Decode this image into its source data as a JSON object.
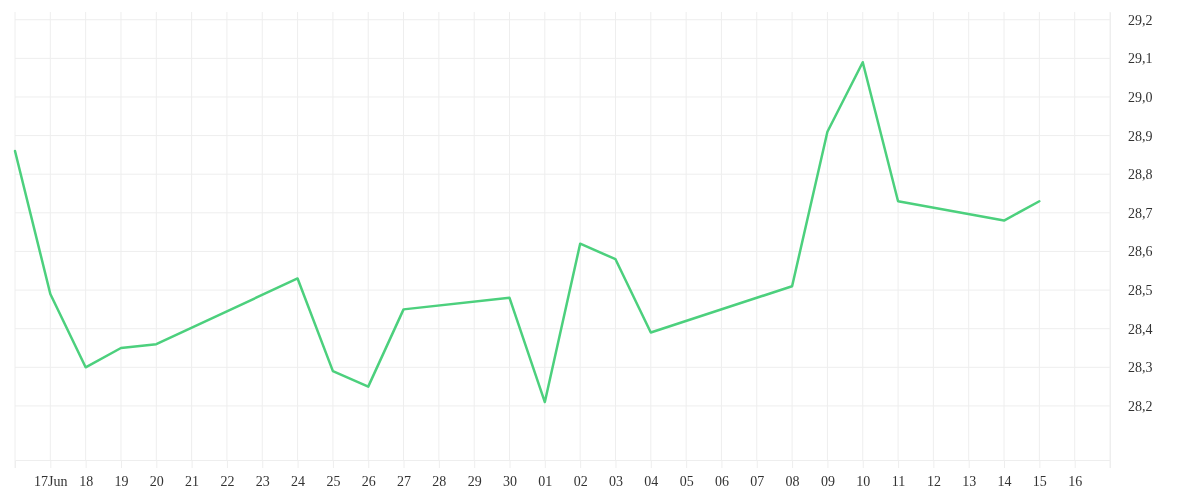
{
  "chart_data": {
    "type": "line",
    "x": [
      "--06-16",
      "--06-17",
      "--06-18",
      "--06-19",
      "--06-20",
      "--06-24",
      "--06-25",
      "--06-26",
      "--06-27",
      "--06-30",
      "--07-01",
      "--07-02",
      "--07-03",
      "--07-04",
      "--07-08",
      "--07-09",
      "--07-10",
      "--07-11",
      "--07-14",
      "--07-15"
    ],
    "series": [
      {
        "color": "#4cd07d",
        "values": [
          28.86,
          28.49,
          28.3,
          28.35,
          28.36,
          28.53,
          28.29,
          28.25,
          28.45,
          28.48,
          28.21,
          28.62,
          28.58,
          28.39,
          28.51,
          28.91,
          29.09,
          28.73,
          28.68,
          28.73
        ]
      }
    ],
    "xlim": [
      "--06-16",
      "--07-17"
    ],
    "xticks": [
      {
        "value": "--06-17",
        "label": "17Jun"
      },
      {
        "value": "--06-18",
        "label": "18"
      },
      {
        "value": "--06-19",
        "label": "19"
      },
      {
        "value": "--06-20",
        "label": "20"
      },
      {
        "value": "--06-21",
        "label": "21"
      },
      {
        "value": "--06-22",
        "label": "22"
      },
      {
        "value": "--06-23",
        "label": "23"
      },
      {
        "value": "--06-24",
        "label": "24"
      },
      {
        "value": "--06-25",
        "label": "25"
      },
      {
        "value": "--06-26",
        "label": "26"
      },
      {
        "value": "--06-27",
        "label": "27"
      },
      {
        "value": "--06-28",
        "label": "28"
      },
      {
        "value": "--06-29",
        "label": "29"
      },
      {
        "value": "--06-30",
        "label": "30"
      },
      {
        "value": "--07-01",
        "label": "01"
      },
      {
        "value": "--07-02",
        "label": "02"
      },
      {
        "value": "--07-03",
        "label": "03"
      },
      {
        "value": "--07-04",
        "label": "04"
      },
      {
        "value": "--07-05",
        "label": "05"
      },
      {
        "value": "--07-06",
        "label": "06"
      },
      {
        "value": "--07-07",
        "label": "07"
      },
      {
        "value": "--07-08",
        "label": "08"
      },
      {
        "value": "--07-09",
        "label": "09"
      },
      {
        "value": "--07-10",
        "label": "10"
      },
      {
        "value": "--07-11",
        "label": "11"
      },
      {
        "value": "--07-12",
        "label": "12"
      },
      {
        "value": "--07-13",
        "label": "13"
      },
      {
        "value": "--07-14",
        "label": "14"
      },
      {
        "value": "--07-15",
        "label": "15"
      },
      {
        "value": "--07-16",
        "label": "16"
      }
    ],
    "ylim": [
      28.06,
      29.22
    ],
    "yticks": [
      {
        "value": 28.2,
        "label": "28,2"
      },
      {
        "value": 28.3,
        "label": "28,3"
      },
      {
        "value": 28.4,
        "label": "28,4"
      },
      {
        "value": 28.5,
        "label": "28,5"
      },
      {
        "value": 28.6,
        "label": "28,6"
      },
      {
        "value": 28.7,
        "label": "28,7"
      },
      {
        "value": 28.8,
        "label": "28,8"
      },
      {
        "value": 28.9,
        "label": "28,9"
      },
      {
        "value": 29.0,
        "label": "29,0"
      },
      {
        "value": 29.1,
        "label": "29,1"
      },
      {
        "value": 29.2,
        "label": "29,2"
      }
    ],
    "grid": true,
    "marker": "none",
    "line_style": "solid"
  }
}
